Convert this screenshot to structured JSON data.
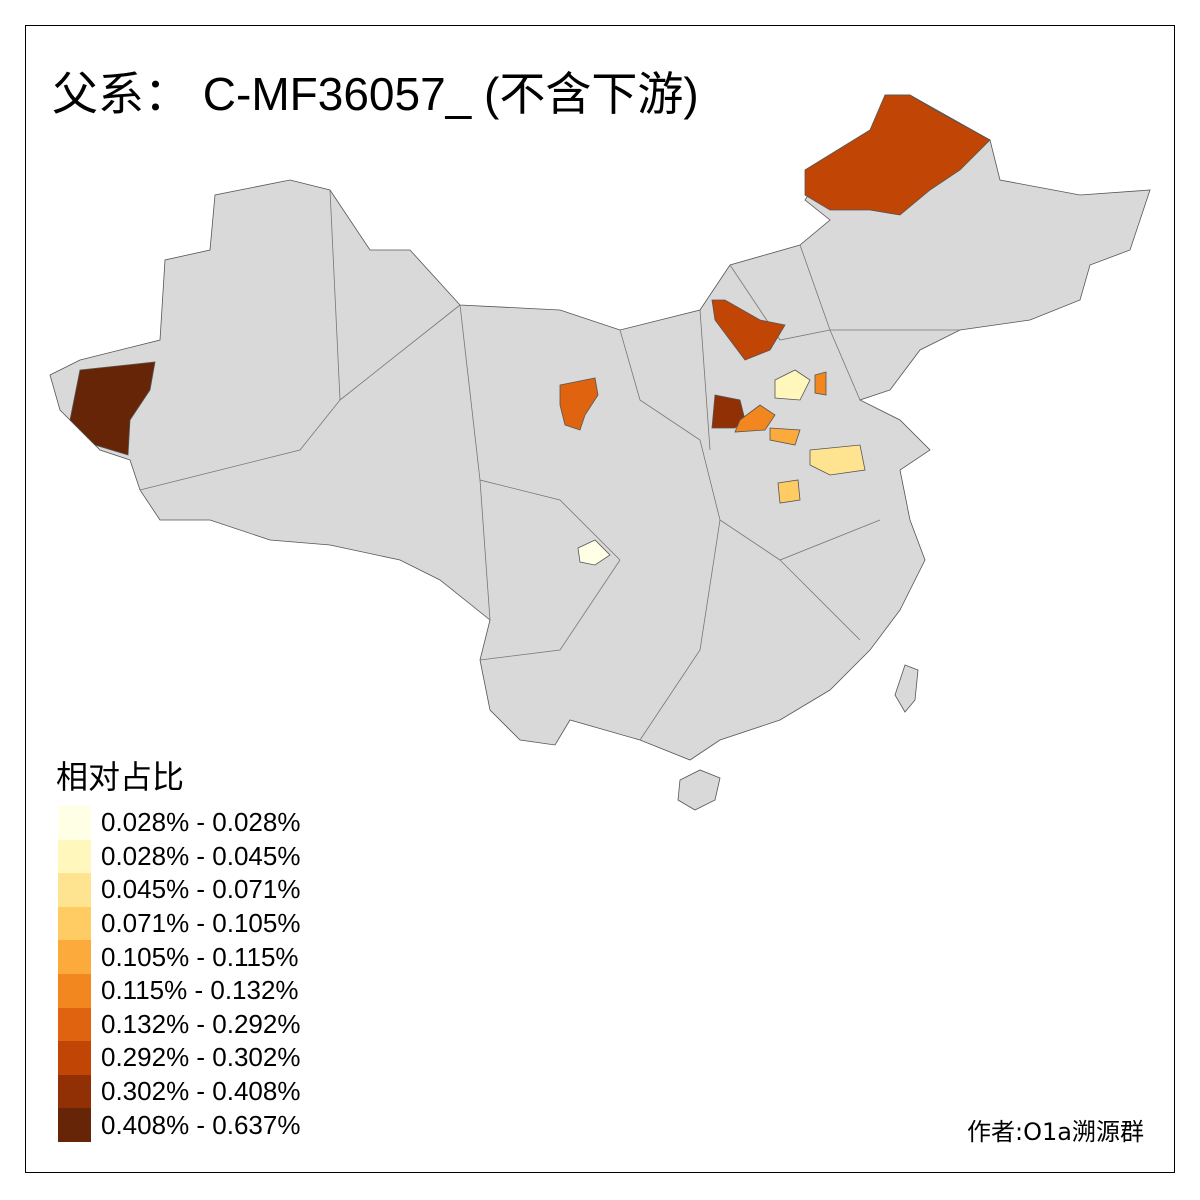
{
  "title": "父系： C-MF36057_ (不含下游)",
  "legend": {
    "title": "相对占比",
    "classes": [
      {
        "label": "0.028% - 0.028%",
        "color": "#FFFFE5"
      },
      {
        "label": "0.028% - 0.045%",
        "color": "#FFF7BC"
      },
      {
        "label": "0.045% - 0.071%",
        "color": "#FEE391"
      },
      {
        "label": "0.071% - 0.105%",
        "color": "#FECC62"
      },
      {
        "label": "0.105% - 0.115%",
        "color": "#FDAA3C"
      },
      {
        "label": "0.115% - 0.132%",
        "color": "#F3871F"
      },
      {
        "label": "0.132% - 0.292%",
        "color": "#E0640F"
      },
      {
        "label": "0.292% - 0.302%",
        "color": "#C14504"
      },
      {
        "label": "0.302% - 0.408%",
        "color": "#913004"
      },
      {
        "label": "0.408% - 0.637%",
        "color": "#662506"
      }
    ]
  },
  "map": {
    "base_color": "#D9D9D9",
    "border_color": "#555555",
    "highlighted_regions_class": [
      9,
      7,
      7,
      6,
      8,
      5,
      4,
      1,
      5,
      2,
      3,
      0
    ]
  },
  "credit": "作者:O1a溯源群"
}
